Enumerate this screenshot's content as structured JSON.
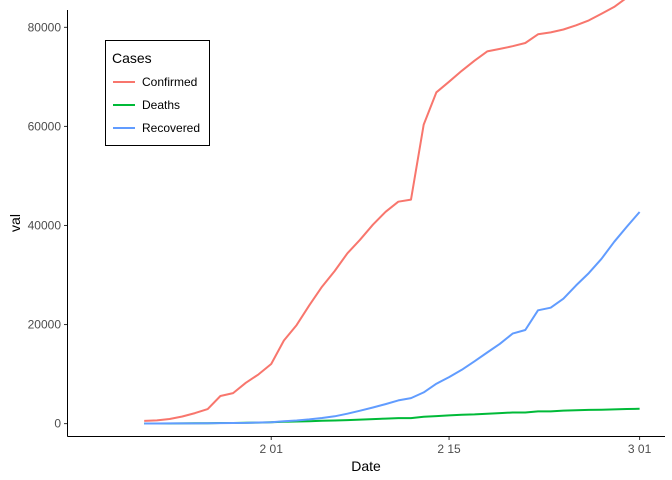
{
  "chart_data": {
    "type": "line",
    "xlabel": "Date",
    "ylabel": "val",
    "xlim": [
      "2020-01-16",
      "2020-03-03"
    ],
    "ylim": [
      -2500,
      83500
    ],
    "x_ticks": [
      {
        "date": "2020-02-01",
        "label": "2 01"
      },
      {
        "date": "2020-02-15",
        "label": "2 15"
      },
      {
        "date": "2020-03-01",
        "label": "3 01"
      }
    ],
    "y_ticks": [
      {
        "value": 0,
        "label": "0"
      },
      {
        "value": 20000,
        "label": "20000"
      },
      {
        "value": 40000,
        "label": "40000"
      },
      {
        "value": 60000,
        "label": "60000"
      },
      {
        "value": 80000,
        "label": "80000"
      }
    ],
    "grid": false,
    "legend": {
      "title": "Cases",
      "placement": "top-left",
      "entries": [
        "Confirmed",
        "Deaths",
        "Recovered"
      ]
    },
    "series": [
      {
        "name": "Confirmed",
        "color": "#f8766d",
        "points": [
          [
            "2020-01-22",
            555
          ],
          [
            "2020-01-23",
            654
          ],
          [
            "2020-01-24",
            941
          ],
          [
            "2020-01-25",
            1434
          ],
          [
            "2020-01-26",
            2118
          ],
          [
            "2020-01-27",
            2927
          ],
          [
            "2020-01-28",
            5578
          ],
          [
            "2020-01-29",
            6166
          ],
          [
            "2020-01-30",
            8234
          ],
          [
            "2020-01-31",
            9927
          ],
          [
            "2020-02-01",
            12038
          ],
          [
            "2020-02-02",
            16787
          ],
          [
            "2020-02-03",
            19881
          ],
          [
            "2020-02-04",
            23892
          ],
          [
            "2020-02-05",
            27636
          ],
          [
            "2020-02-06",
            30818
          ],
          [
            "2020-02-07",
            34392
          ],
          [
            "2020-02-08",
            37121
          ],
          [
            "2020-02-09",
            40151
          ],
          [
            "2020-02-10",
            42763
          ],
          [
            "2020-02-11",
            44803
          ],
          [
            "2020-02-12",
            45222
          ],
          [
            "2020-02-13",
            60370
          ],
          [
            "2020-02-14",
            66887
          ],
          [
            "2020-02-15",
            69032
          ],
          [
            "2020-02-16",
            71226
          ],
          [
            "2020-02-17",
            73260
          ],
          [
            "2020-02-18",
            75138
          ],
          [
            "2020-02-19",
            75641
          ],
          [
            "2020-02-20",
            76199
          ],
          [
            "2020-02-21",
            76843
          ],
          [
            "2020-02-22",
            78599
          ],
          [
            "2020-02-23",
            78985
          ],
          [
            "2020-02-24",
            79570
          ],
          [
            "2020-02-25",
            80415
          ],
          [
            "2020-02-26",
            81397
          ],
          [
            "2020-02-27",
            82756
          ],
          [
            "2020-02-28",
            84124
          ],
          [
            "2020-02-29",
            86013
          ],
          [
            "2020-03-01",
            88371
          ]
        ]
      },
      {
        "name": "Deaths",
        "color": "#00ba38",
        "points": [
          [
            "2020-01-22",
            17
          ],
          [
            "2020-01-23",
            18
          ],
          [
            "2020-01-24",
            26
          ],
          [
            "2020-01-25",
            42
          ],
          [
            "2020-01-26",
            56
          ],
          [
            "2020-01-27",
            82
          ],
          [
            "2020-01-28",
            131
          ],
          [
            "2020-01-29",
            133
          ],
          [
            "2020-01-30",
            171
          ],
          [
            "2020-01-31",
            213
          ],
          [
            "2020-02-01",
            259
          ],
          [
            "2020-02-02",
            362
          ],
          [
            "2020-02-03",
            426
          ],
          [
            "2020-02-04",
            492
          ],
          [
            "2020-02-05",
            564
          ],
          [
            "2020-02-06",
            634
          ],
          [
            "2020-02-07",
            719
          ],
          [
            "2020-02-08",
            806
          ],
          [
            "2020-02-09",
            906
          ],
          [
            "2020-02-10",
            1013
          ],
          [
            "2020-02-11",
            1113
          ],
          [
            "2020-02-12",
            1118
          ],
          [
            "2020-02-13",
            1371
          ],
          [
            "2020-02-14",
            1523
          ],
          [
            "2020-02-15",
            1666
          ],
          [
            "2020-02-16",
            1770
          ],
          [
            "2020-02-17",
            1868
          ],
          [
            "2020-02-18",
            2007
          ],
          [
            "2020-02-19",
            2122
          ],
          [
            "2020-02-20",
            2247
          ],
          [
            "2020-02-21",
            2251
          ],
          [
            "2020-02-22",
            2458
          ],
          [
            "2020-02-23",
            2469
          ],
          [
            "2020-02-24",
            2629
          ],
          [
            "2020-02-25",
            2708
          ],
          [
            "2020-02-26",
            2770
          ],
          [
            "2020-02-27",
            2814
          ],
          [
            "2020-02-28",
            2872
          ],
          [
            "2020-02-29",
            2941
          ],
          [
            "2020-03-01",
            2996
          ]
        ]
      },
      {
        "name": "Recovered",
        "color": "#619cff",
        "points": [
          [
            "2020-01-22",
            28
          ],
          [
            "2020-01-23",
            30
          ],
          [
            "2020-01-24",
            36
          ],
          [
            "2020-01-25",
            39
          ],
          [
            "2020-01-26",
            52
          ],
          [
            "2020-01-27",
            61
          ],
          [
            "2020-01-28",
            107
          ],
          [
            "2020-01-29",
            126
          ],
          [
            "2020-01-30",
            143
          ],
          [
            "2020-01-31",
            222
          ],
          [
            "2020-02-01",
            284
          ],
          [
            "2020-02-02",
            472
          ],
          [
            "2020-02-03",
            623
          ],
          [
            "2020-02-04",
            852
          ],
          [
            "2020-02-05",
            1124
          ],
          [
            "2020-02-06",
            1487
          ],
          [
            "2020-02-07",
            2011
          ],
          [
            "2020-02-08",
            2616
          ],
          [
            "2020-02-09",
            3244
          ],
          [
            "2020-02-10",
            3946
          ],
          [
            "2020-02-11",
            4683
          ],
          [
            "2020-02-12",
            5150
          ],
          [
            "2020-02-13",
            6295
          ],
          [
            "2020-02-14",
            8058
          ],
          [
            "2020-02-15",
            9395
          ],
          [
            "2020-02-16",
            10865
          ],
          [
            "2020-02-17",
            12583
          ],
          [
            "2020-02-18",
            14352
          ],
          [
            "2020-02-19",
            16121
          ],
          [
            "2020-02-20",
            18177
          ],
          [
            "2020-02-21",
            18890
          ],
          [
            "2020-02-22",
            22886
          ],
          [
            "2020-02-23",
            23394
          ],
          [
            "2020-02-24",
            25227
          ],
          [
            "2020-02-25",
            27905
          ],
          [
            "2020-02-26",
            30384
          ],
          [
            "2020-02-27",
            33277
          ],
          [
            "2020-02-28",
            36711
          ],
          [
            "2020-02-29",
            39782
          ],
          [
            "2020-03-01",
            42716
          ]
        ]
      }
    ]
  }
}
